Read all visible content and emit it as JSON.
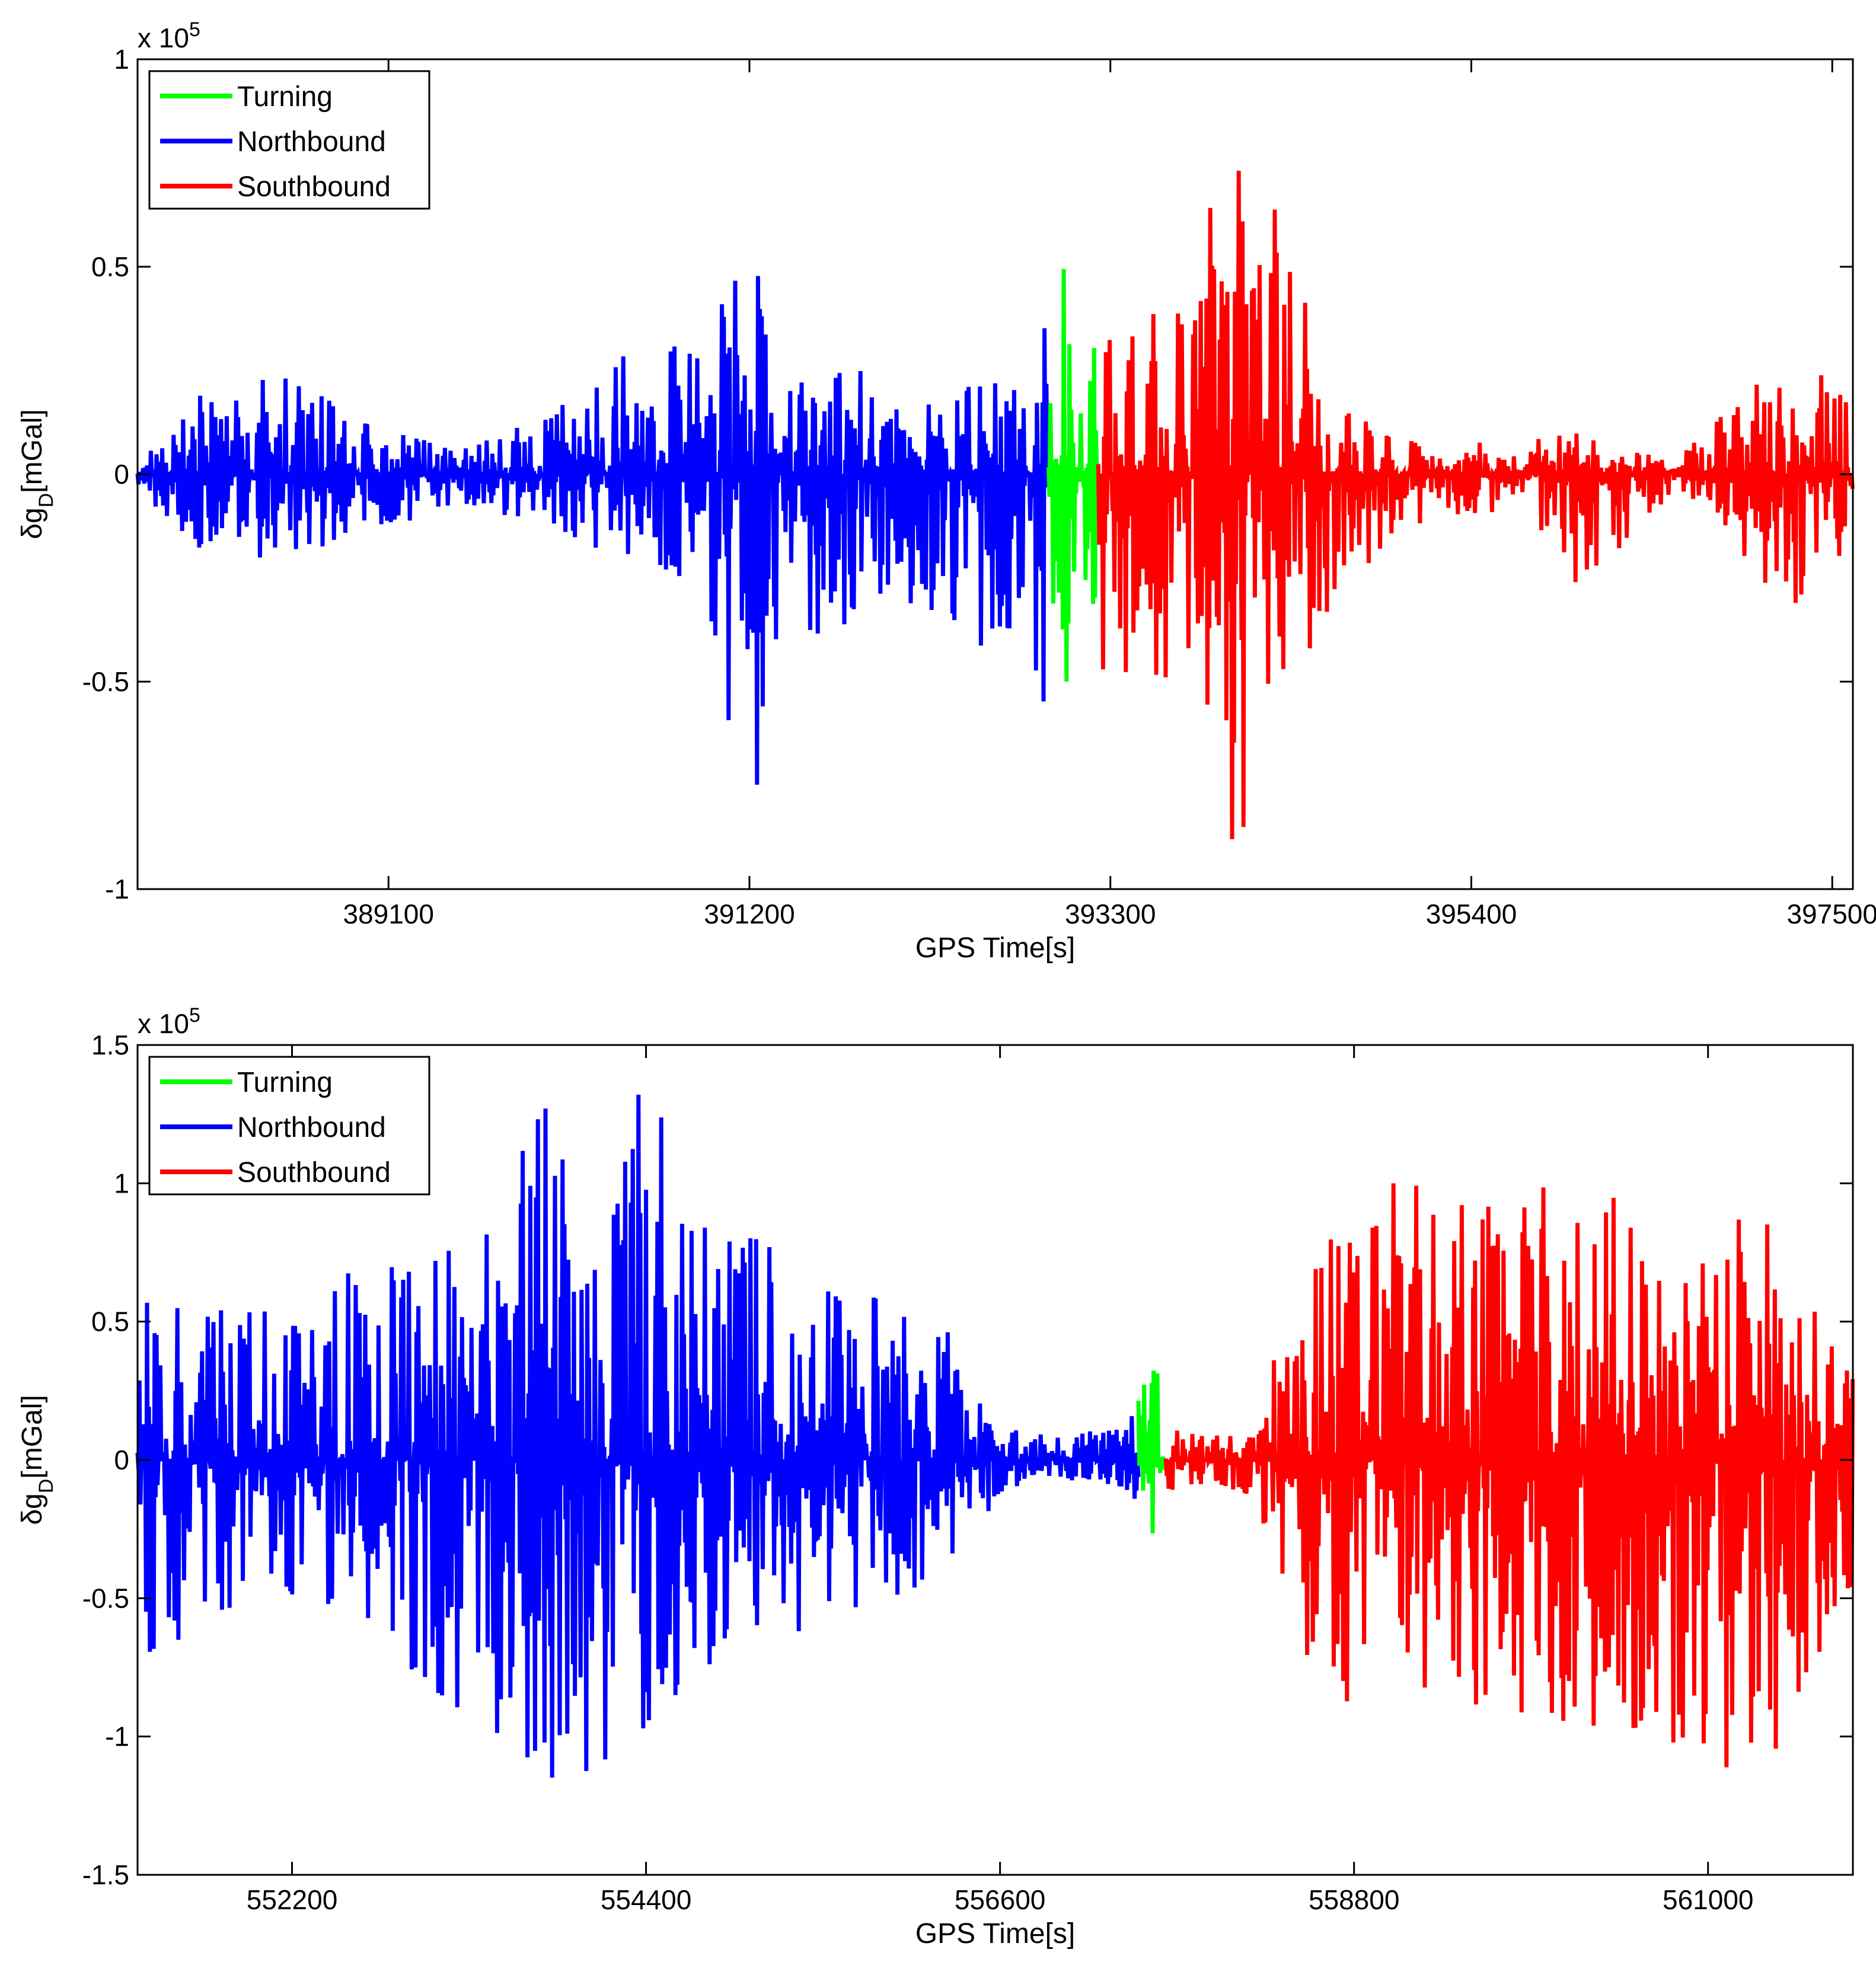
{
  "chart_data": [
    {
      "type": "line",
      "title": "",
      "exponent_label": "x 10",
      "exponent_power": "5",
      "xlabel": "GPS Time[s]",
      "ylabel": "δg",
      "ylabel_sub": "D",
      "ylabel_unit": "[mGal]",
      "xlim": [
        387640,
        397620
      ],
      "ylim": [
        -1,
        1
      ],
      "xticks": [
        389100,
        391200,
        393300,
        395400,
        397500
      ],
      "yticks": [
        -1,
        -0.5,
        0,
        0.5,
        1
      ],
      "ytick_labels": [
        "-1",
        "-0.5",
        "0",
        "0.5",
        "1"
      ],
      "grid": false,
      "legend_position": "top-left",
      "series": [
        {
          "name": "Turning",
          "color": "#00ff00",
          "x_range": [
            392940,
            393230
          ],
          "envelope_x": [
            392940,
            393000,
            393050,
            393100,
            393150,
            393200,
            393230
          ],
          "envelope_hi": [
            0.38,
            0.26,
            0.74,
            0.28,
            0.3,
            0.34,
            0.3
          ],
          "envelope_lo": [
            -0.55,
            -0.5,
            -0.72,
            -0.35,
            -0.25,
            -0.4,
            -0.3
          ],
          "seed": 11
        },
        {
          "name": "Northbound",
          "color": "#0000ff",
          "x_range": [
            387640,
            392940
          ],
          "envelope_x": [
            387640,
            388000,
            388500,
            389000,
            389500,
            390000,
            390500,
            390900,
            391000,
            391150,
            391220,
            391300,
            391400,
            391700,
            392000,
            392300,
            392600,
            392900
          ],
          "envelope_hi": [
            0.04,
            0.2,
            0.24,
            0.12,
            0.06,
            0.14,
            0.3,
            0.32,
            0.48,
            0.5,
            0.73,
            0.36,
            0.2,
            0.28,
            0.22,
            0.2,
            0.22,
            0.4
          ],
          "envelope_lo": [
            -0.03,
            -0.22,
            -0.2,
            -0.14,
            -0.08,
            -0.12,
            -0.22,
            -0.26,
            -0.43,
            -0.75,
            -0.84,
            -0.55,
            -0.45,
            -0.4,
            -0.3,
            -0.35,
            -0.45,
            -0.55
          ],
          "seed": 3
        },
        {
          "name": "Southbound",
          "color": "#ff0000",
          "x_range": [
            393230,
            397620
          ],
          "envelope_x": [
            393230,
            393400,
            393600,
            393800,
            393950,
            394000,
            394100,
            394300,
            394600,
            394900,
            395200,
            395500,
            395700,
            396000,
            396400,
            396600,
            396800,
            397000,
            397300,
            397620
          ],
          "envelope_hi": [
            0.56,
            0.36,
            0.4,
            0.4,
            0.85,
            1.0,
            0.8,
            0.6,
            0.18,
            0.1,
            0.06,
            0.08,
            0.08,
            0.1,
            0.05,
            0.05,
            0.12,
            0.22,
            0.33,
            0.18
          ],
          "envelope_lo": [
            -0.5,
            -0.5,
            -0.5,
            -0.48,
            -0.78,
            -0.97,
            -0.9,
            -0.56,
            -0.3,
            -0.18,
            -0.1,
            -0.1,
            -0.05,
            -0.3,
            -0.12,
            -0.05,
            -0.08,
            -0.22,
            -0.36,
            -0.18
          ],
          "seed": 7
        }
      ]
    },
    {
      "type": "line",
      "title": "",
      "exponent_label": "x 10",
      "exponent_power": "5",
      "xlabel": "GPS Time[s]",
      "ylabel": "δg",
      "ylabel_sub": "D",
      "ylabel_unit": "[mGal]",
      "xlim": [
        551240,
        561900
      ],
      "ylim": [
        -1.5,
        1.5
      ],
      "xticks": [
        552200,
        554400,
        556600,
        558800,
        561000
      ],
      "yticks": [
        -1.5,
        -1,
        -0.5,
        0,
        0.5,
        1,
        1.5
      ],
      "ytick_labels": [
        "-1.5",
        "-1",
        "-0.5",
        "0",
        "0.5",
        "1",
        "1.5"
      ],
      "grid": false,
      "legend_position": "top-left",
      "series": [
        {
          "name": "Turning",
          "color": "#00ff00",
          "x_range": [
            557460,
            557630
          ],
          "envelope_x": [
            557460,
            557500,
            557560,
            557600,
            557630
          ],
          "envelope_hi": [
            0.22,
            0.3,
            0.42,
            0.2,
            0.12
          ],
          "envelope_lo": [
            -0.18,
            -0.22,
            -0.3,
            -0.18,
            -0.12
          ],
          "seed": 19
        },
        {
          "name": "Northbound",
          "color": "#0000ff",
          "x_range": [
            551240,
            557460
          ],
          "envelope_x": [
            551240,
            551700,
            552200,
            552600,
            553000,
            553400,
            553600,
            553800,
            554000,
            554200,
            554400,
            554700,
            555100,
            555600,
            556000,
            556300,
            556600,
            557000,
            557460
          ],
          "envelope_hi": [
            0.6,
            0.55,
            0.55,
            0.7,
            0.8,
            0.9,
            1.2,
            1.3,
            1.1,
            0.9,
            1.45,
            0.9,
            0.8,
            0.6,
            0.6,
            0.45,
            0.12,
            0.08,
            0.18
          ],
          "envelope_lo": [
            -0.75,
            -0.6,
            -0.5,
            -0.55,
            -0.8,
            -1.1,
            -1.2,
            -1.25,
            -1.45,
            -1.0,
            -1.1,
            -0.8,
            -0.7,
            -0.55,
            -0.5,
            -0.4,
            -0.12,
            -0.06,
            -0.2
          ],
          "seed": 5
        },
        {
          "name": "Southbound",
          "color": "#ff0000",
          "x_range": [
            557630,
            561900
          ],
          "envelope_x": [
            557630,
            557900,
            558200,
            558400,
            558600,
            558800,
            559000,
            559300,
            559600,
            559900,
            560200,
            560500,
            560800,
            561100,
            561400,
            561700,
            561900
          ],
          "envelope_hi": [
            0.12,
            0.08,
            0.15,
            0.6,
            0.8,
            0.9,
            1.0,
            1.0,
            0.95,
            1.05,
            1.0,
            0.95,
            0.95,
            0.95,
            0.85,
            0.7,
            0.4
          ],
          "envelope_lo": [
            -0.12,
            -0.08,
            -0.15,
            -0.6,
            -0.8,
            -0.9,
            -0.9,
            -0.95,
            -0.95,
            -0.95,
            -0.95,
            -1.0,
            -1.05,
            -1.2,
            -1.1,
            -0.8,
            -0.5
          ],
          "seed": 13
        }
      ]
    }
  ]
}
